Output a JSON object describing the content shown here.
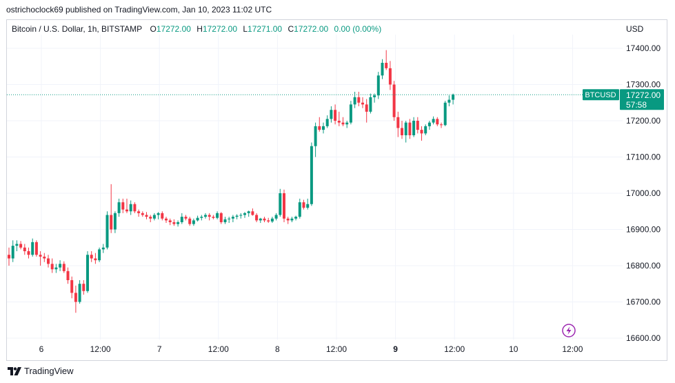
{
  "header": {
    "published_by": "ostrichoclock69 published on TradingView.com, Jan 10, 2023 11:02 UTC"
  },
  "symbol_bar": {
    "symbol": "Bitcoin / U.S. Dollar, 1h, BITSTAMP",
    "open_label": "O",
    "open": "17272.00",
    "high_label": "H",
    "high": "17272.00",
    "low_label": "L",
    "low": "17271.00",
    "close_label": "C",
    "close": "17272.00",
    "change": "0.00 (0.00%)"
  },
  "price_axis": {
    "currency": "USD",
    "ticks": [
      "17400.00",
      "17300.00",
      "17200.00",
      "17100.00",
      "17000.00",
      "16900.00",
      "16800.00",
      "16700.00",
      "16600.00"
    ]
  },
  "price_label": {
    "ticker": "BTCUSD",
    "price": "17272.00",
    "countdown": "57:58"
  },
  "time_axis": {
    "ticks": [
      "6",
      "12:00",
      "7",
      "12:00",
      "8",
      "12:00",
      "9",
      "12:00",
      "10",
      "12:00"
    ]
  },
  "footer": {
    "brand": "TradingView"
  },
  "colors": {
    "up": "#089981",
    "down": "#f23645",
    "grid": "#f0f3fa",
    "last_price_line": "#089981",
    "lightning_icon": "#9c27b0"
  },
  "chart_data": {
    "type": "candlestick",
    "title": "Bitcoin / U.S. Dollar, 1h, BITSTAMP",
    "ylabel": "USD",
    "ylim": [
      16600,
      17460
    ],
    "grid": true,
    "last_price": 17272,
    "x_ticks": [
      "6",
      "12:00",
      "7",
      "12:00",
      "8",
      "12:00",
      "9",
      "12:00",
      "10",
      "12:00"
    ],
    "candles": [
      {
        "o": 16830,
        "h": 16850,
        "l": 16800,
        "c": 16820
      },
      {
        "o": 16820,
        "h": 16870,
        "l": 16810,
        "c": 16855
      },
      {
        "o": 16855,
        "h": 16870,
        "l": 16840,
        "c": 16860
      },
      {
        "o": 16860,
        "h": 16868,
        "l": 16845,
        "c": 16850
      },
      {
        "o": 16850,
        "h": 16860,
        "l": 16830,
        "c": 16840
      },
      {
        "o": 16840,
        "h": 16850,
        "l": 16820,
        "c": 16830
      },
      {
        "o": 16830,
        "h": 16875,
        "l": 16825,
        "c": 16865
      },
      {
        "o": 16865,
        "h": 16870,
        "l": 16825,
        "c": 16830
      },
      {
        "o": 16830,
        "h": 16840,
        "l": 16800,
        "c": 16825
      },
      {
        "o": 16825,
        "h": 16835,
        "l": 16810,
        "c": 16820
      },
      {
        "o": 16820,
        "h": 16830,
        "l": 16795,
        "c": 16805
      },
      {
        "o": 16805,
        "h": 16820,
        "l": 16780,
        "c": 16790
      },
      {
        "o": 16790,
        "h": 16805,
        "l": 16780,
        "c": 16795
      },
      {
        "o": 16795,
        "h": 16815,
        "l": 16785,
        "c": 16805
      },
      {
        "o": 16805,
        "h": 16812,
        "l": 16780,
        "c": 16785
      },
      {
        "o": 16785,
        "h": 16795,
        "l": 16750,
        "c": 16760
      },
      {
        "o": 16760,
        "h": 16770,
        "l": 16710,
        "c": 16725
      },
      {
        "o": 16725,
        "h": 16745,
        "l": 16670,
        "c": 16700
      },
      {
        "o": 16700,
        "h": 16760,
        "l": 16695,
        "c": 16750
      },
      {
        "o": 16750,
        "h": 16760,
        "l": 16720,
        "c": 16730
      },
      {
        "o": 16730,
        "h": 16840,
        "l": 16725,
        "c": 16830
      },
      {
        "o": 16830,
        "h": 16840,
        "l": 16810,
        "c": 16820
      },
      {
        "o": 16820,
        "h": 16835,
        "l": 16805,
        "c": 16815
      },
      {
        "o": 16815,
        "h": 16850,
        "l": 16810,
        "c": 16845
      },
      {
        "o": 16845,
        "h": 16860,
        "l": 16835,
        "c": 16850
      },
      {
        "o": 16850,
        "h": 16950,
        "l": 16845,
        "c": 16940
      },
      {
        "o": 16940,
        "h": 17025,
        "l": 16890,
        "c": 16900
      },
      {
        "o": 16900,
        "h": 16950,
        "l": 16890,
        "c": 16945
      },
      {
        "o": 16945,
        "h": 16985,
        "l": 16935,
        "c": 16975
      },
      {
        "o": 16975,
        "h": 16985,
        "l": 16945,
        "c": 16955
      },
      {
        "o": 16955,
        "h": 16985,
        "l": 16945,
        "c": 16950
      },
      {
        "o": 16950,
        "h": 16980,
        "l": 16940,
        "c": 16970
      },
      {
        "o": 16970,
        "h": 16975,
        "l": 16945,
        "c": 16950
      },
      {
        "o": 16950,
        "h": 16955,
        "l": 16935,
        "c": 16945
      },
      {
        "o": 16945,
        "h": 16950,
        "l": 16935,
        "c": 16940
      },
      {
        "o": 16940,
        "h": 16948,
        "l": 16928,
        "c": 16935
      },
      {
        "o": 16935,
        "h": 16940,
        "l": 16920,
        "c": 16930
      },
      {
        "o": 16930,
        "h": 16945,
        "l": 16925,
        "c": 16940
      },
      {
        "o": 16940,
        "h": 16948,
        "l": 16928,
        "c": 16945
      },
      {
        "o": 16945,
        "h": 16950,
        "l": 16925,
        "c": 16930
      },
      {
        "o": 16930,
        "h": 16935,
        "l": 16918,
        "c": 16925
      },
      {
        "o": 16925,
        "h": 16930,
        "l": 16912,
        "c": 16920
      },
      {
        "o": 16920,
        "h": 16928,
        "l": 16910,
        "c": 16915
      },
      {
        "o": 16915,
        "h": 16925,
        "l": 16908,
        "c": 16920
      },
      {
        "o": 16920,
        "h": 16945,
        "l": 16915,
        "c": 16935
      },
      {
        "o": 16935,
        "h": 16940,
        "l": 16925,
        "c": 16930
      },
      {
        "o": 16930,
        "h": 16935,
        "l": 16910,
        "c": 16915
      },
      {
        "o": 16915,
        "h": 16930,
        "l": 16910,
        "c": 16925
      },
      {
        "o": 16925,
        "h": 16938,
        "l": 16922,
        "c": 16932
      },
      {
        "o": 16932,
        "h": 16940,
        "l": 16925,
        "c": 16935
      },
      {
        "o": 16935,
        "h": 16945,
        "l": 16930,
        "c": 16940
      },
      {
        "o": 16940,
        "h": 16945,
        "l": 16925,
        "c": 16935
      },
      {
        "o": 16935,
        "h": 16940,
        "l": 16928,
        "c": 16932
      },
      {
        "o": 16932,
        "h": 16950,
        "l": 16928,
        "c": 16945
      },
      {
        "o": 16945,
        "h": 16948,
        "l": 16915,
        "c": 16920
      },
      {
        "o": 16920,
        "h": 16935,
        "l": 16915,
        "c": 16928
      },
      {
        "o": 16928,
        "h": 16935,
        "l": 16918,
        "c": 16930
      },
      {
        "o": 16930,
        "h": 16940,
        "l": 16920,
        "c": 16935
      },
      {
        "o": 16935,
        "h": 16942,
        "l": 16928,
        "c": 16938
      },
      {
        "o": 16938,
        "h": 16945,
        "l": 16930,
        "c": 16940
      },
      {
        "o": 16940,
        "h": 16948,
        "l": 16932,
        "c": 16945
      },
      {
        "o": 16945,
        "h": 16952,
        "l": 16935,
        "c": 16950
      },
      {
        "o": 16950,
        "h": 16958,
        "l": 16938,
        "c": 16940
      },
      {
        "o": 16940,
        "h": 16945,
        "l": 16920,
        "c": 16925
      },
      {
        "o": 16925,
        "h": 16932,
        "l": 16918,
        "c": 16930
      },
      {
        "o": 16930,
        "h": 16935,
        "l": 16920,
        "c": 16925
      },
      {
        "o": 16925,
        "h": 16932,
        "l": 16918,
        "c": 16922
      },
      {
        "o": 16922,
        "h": 16935,
        "l": 16918,
        "c": 16930
      },
      {
        "o": 16930,
        "h": 16945,
        "l": 16925,
        "c": 16940
      },
      {
        "o": 16940,
        "h": 17012,
        "l": 16935,
        "c": 17000
      },
      {
        "o": 17000,
        "h": 17010,
        "l": 16920,
        "c": 16930
      },
      {
        "o": 16930,
        "h": 16935,
        "l": 16915,
        "c": 16925
      },
      {
        "o": 16925,
        "h": 16935,
        "l": 16920,
        "c": 16930
      },
      {
        "o": 16930,
        "h": 16938,
        "l": 16925,
        "c": 16935
      },
      {
        "o": 16935,
        "h": 16985,
        "l": 16930,
        "c": 16975
      },
      {
        "o": 16975,
        "h": 16982,
        "l": 16955,
        "c": 16960
      },
      {
        "o": 16960,
        "h": 16985,
        "l": 16955,
        "c": 16970
      },
      {
        "o": 16970,
        "h": 17140,
        "l": 16965,
        "c": 17130
      },
      {
        "o": 17130,
        "h": 17195,
        "l": 17100,
        "c": 17185
      },
      {
        "o": 17185,
        "h": 17210,
        "l": 17170,
        "c": 17175
      },
      {
        "o": 17175,
        "h": 17195,
        "l": 17165,
        "c": 17185
      },
      {
        "o": 17185,
        "h": 17215,
        "l": 17180,
        "c": 17205
      },
      {
        "o": 17205,
        "h": 17240,
        "l": 17195,
        "c": 17230
      },
      {
        "o": 17230,
        "h": 17245,
        "l": 17190,
        "c": 17200
      },
      {
        "o": 17200,
        "h": 17225,
        "l": 17185,
        "c": 17195
      },
      {
        "o": 17195,
        "h": 17210,
        "l": 17185,
        "c": 17190
      },
      {
        "o": 17190,
        "h": 17200,
        "l": 17180,
        "c": 17195
      },
      {
        "o": 17195,
        "h": 17255,
        "l": 17190,
        "c": 17245
      },
      {
        "o": 17245,
        "h": 17280,
        "l": 17235,
        "c": 17265
      },
      {
        "o": 17265,
        "h": 17280,
        "l": 17240,
        "c": 17250
      },
      {
        "o": 17250,
        "h": 17265,
        "l": 17235,
        "c": 17245
      },
      {
        "o": 17245,
        "h": 17260,
        "l": 17195,
        "c": 17225
      },
      {
        "o": 17225,
        "h": 17275,
        "l": 17220,
        "c": 17265
      },
      {
        "o": 17265,
        "h": 17275,
        "l": 17250,
        "c": 17270
      },
      {
        "o": 17270,
        "h": 17335,
        "l": 17260,
        "c": 17325
      },
      {
        "o": 17325,
        "h": 17370,
        "l": 17315,
        "c": 17360
      },
      {
        "o": 17360,
        "h": 17395,
        "l": 17340,
        "c": 17345
      },
      {
        "o": 17345,
        "h": 17365,
        "l": 17285,
        "c": 17300
      },
      {
        "o": 17300,
        "h": 17310,
        "l": 17200,
        "c": 17210
      },
      {
        "o": 17210,
        "h": 17225,
        "l": 17155,
        "c": 17180
      },
      {
        "o": 17180,
        "h": 17200,
        "l": 17150,
        "c": 17160
      },
      {
        "o": 17160,
        "h": 17200,
        "l": 17140,
        "c": 17195
      },
      {
        "o": 17195,
        "h": 17205,
        "l": 17150,
        "c": 17160
      },
      {
        "o": 17160,
        "h": 17210,
        "l": 17155,
        "c": 17200
      },
      {
        "o": 17200,
        "h": 17210,
        "l": 17165,
        "c": 17175
      },
      {
        "o": 17175,
        "h": 17185,
        "l": 17145,
        "c": 17165
      },
      {
        "o": 17165,
        "h": 17190,
        "l": 17160,
        "c": 17185
      },
      {
        "o": 17185,
        "h": 17200,
        "l": 17175,
        "c": 17195
      },
      {
        "o": 17195,
        "h": 17212,
        "l": 17190,
        "c": 17205
      },
      {
        "o": 17205,
        "h": 17210,
        "l": 17185,
        "c": 17190
      },
      {
        "o": 17190,
        "h": 17195,
        "l": 17180,
        "c": 17188
      },
      {
        "o": 17188,
        "h": 17255,
        "l": 17185,
        "c": 17250
      },
      {
        "o": 17250,
        "h": 17270,
        "l": 17240,
        "c": 17258
      },
      {
        "o": 17258,
        "h": 17275,
        "l": 17245,
        "c": 17272
      }
    ]
  }
}
